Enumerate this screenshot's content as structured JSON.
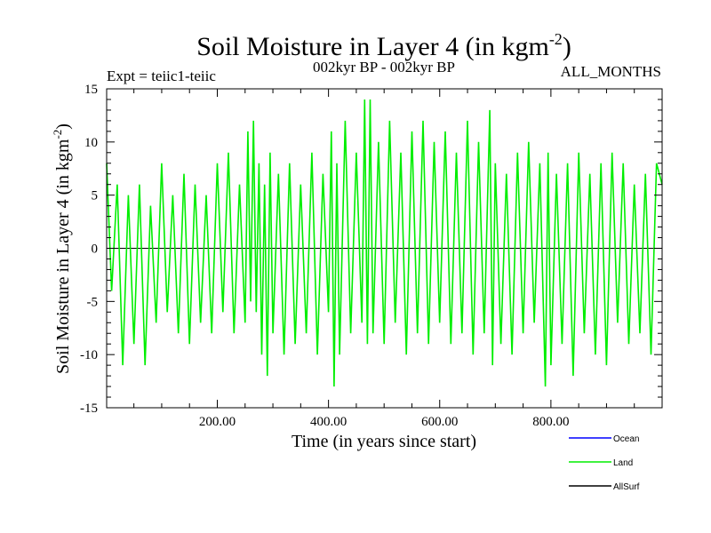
{
  "chart_data": {
    "type": "line",
    "title": "Soil Moisture in Layer 4 (in kgm",
    "title_superscript": "-2",
    "title_suffix": ")",
    "subtitle_left": "Expt = teiic1-teiic",
    "subtitle_center": "002kyr BP - 002kyr BP",
    "subtitle_right": "ALL_MONTHS",
    "xlabel": "Time (in years since start)",
    "ylabel": "Soil Moisture in Layer 4 (in kgm",
    "ylabel_superscript": "-2",
    "ylabel_suffix": ")",
    "xlim": [
      1,
      1000
    ],
    "ylim": [
      -15,
      15
    ],
    "x_ticks": [
      200,
      400,
      600,
      800
    ],
    "x_tick_labels": [
      "200.00",
      "400.00",
      "600.00",
      "800.00"
    ],
    "y_ticks": [
      -15,
      -10,
      -5,
      0,
      5,
      10,
      15
    ],
    "y_tick_labels": [
      "-15",
      "-10",
      "-5",
      "0",
      "5",
      "10",
      "15"
    ],
    "grid": false,
    "legend_position": "bottom-right",
    "zero_line": true,
    "series": [
      {
        "name": "Ocean",
        "color": "#0000ff",
        "x": [],
        "y": []
      },
      {
        "name": "Land",
        "color": "#00ee00",
        "x": [
          1,
          10,
          20,
          30,
          40,
          50,
          60,
          70,
          80,
          90,
          100,
          110,
          120,
          130,
          140,
          150,
          160,
          170,
          180,
          190,
          200,
          210,
          220,
          230,
          240,
          250,
          255,
          260,
          265,
          270,
          275,
          280,
          285,
          290,
          295,
          300,
          310,
          320,
          330,
          340,
          350,
          360,
          370,
          380,
          390,
          400,
          405,
          410,
          415,
          420,
          430,
          440,
          450,
          460,
          465,
          470,
          475,
          480,
          490,
          500,
          510,
          520,
          530,
          540,
          550,
          560,
          570,
          580,
          590,
          600,
          610,
          620,
          630,
          640,
          650,
          660,
          670,
          680,
          690,
          695,
          700,
          710,
          720,
          730,
          740,
          750,
          760,
          770,
          780,
          790,
          795,
          800,
          810,
          820,
          830,
          840,
          850,
          860,
          870,
          880,
          890,
          900,
          910,
          920,
          930,
          940,
          950,
          960,
          970,
          980,
          990,
          1000
        ],
        "y": [
          8,
          -4,
          6,
          -11,
          5,
          -9,
          6,
          -11,
          4,
          -7,
          8,
          -6,
          5,
          -8,
          7,
          -9,
          6,
          -7,
          5,
          -8,
          8,
          -6,
          9,
          -8,
          6,
          -7,
          11,
          -5,
          12,
          -6,
          8,
          -10,
          6,
          -12,
          9,
          -8,
          7,
          -10,
          8,
          -9,
          6,
          -8,
          9,
          -10,
          7,
          -6,
          11,
          -13,
          8,
          -10,
          12,
          -8,
          9,
          -7,
          14,
          -9,
          14,
          -8,
          10,
          -9,
          12,
          -7,
          9,
          -10,
          11,
          -8,
          12,
          -9,
          10,
          -7,
          11,
          -9,
          9,
          -8,
          12,
          -10,
          10,
          -8,
          13,
          -11,
          8,
          -9,
          7,
          -10,
          9,
          -8,
          10,
          -7,
          8,
          -13,
          9,
          -11,
          7,
          -9,
          8,
          -12,
          9,
          -8,
          7,
          -10,
          8,
          -11,
          9,
          -7,
          8,
          -9,
          6,
          -8,
          7,
          -10,
          8,
          6
        ]
      },
      {
        "name": "AllSurf",
        "color": "#000000",
        "x": [],
        "y": []
      }
    ]
  }
}
